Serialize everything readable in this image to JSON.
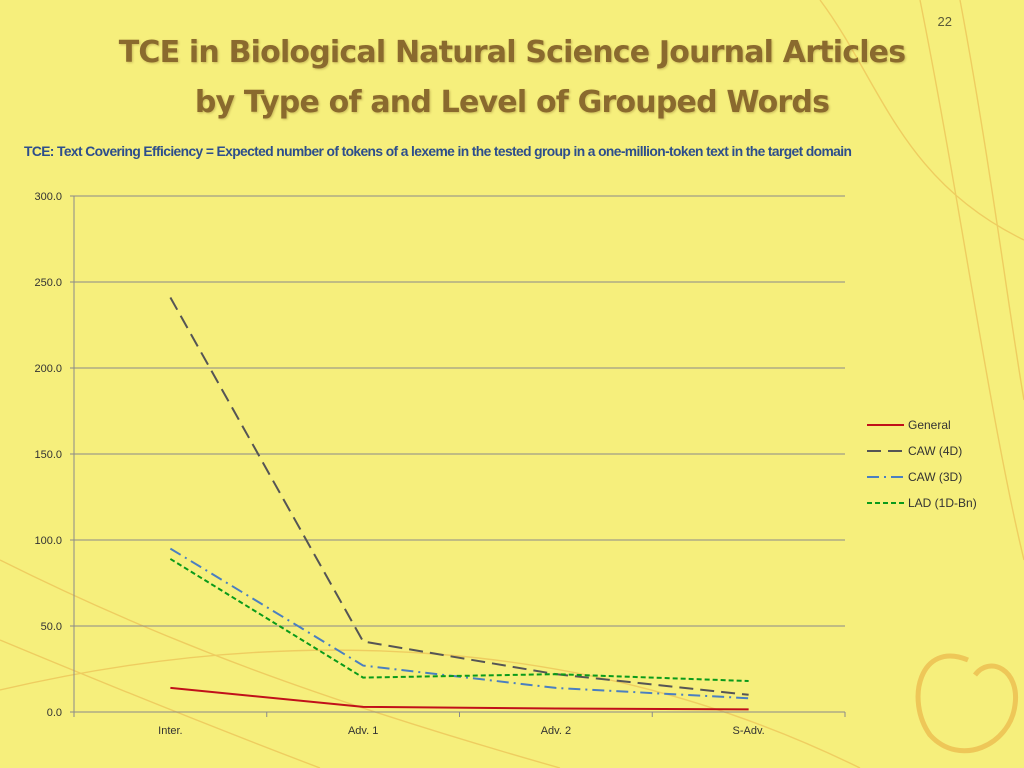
{
  "slide": {
    "number": "22",
    "title_line1": "TCE in Biological Natural Science Journal Articles",
    "title_line2": "by Type of and Level of Grouped Words",
    "subtitle": "TCE: Text Covering Efficiency = Expected number of tokens of a lexeme in the tested group in a one-million-token text in the target domain"
  },
  "colors": {
    "background": "#f6ef7c",
    "title": "#8a6a2e",
    "subtitle": "#2d4e8c",
    "grid": "#8a8a8a"
  },
  "chart_data": {
    "type": "line",
    "categories": [
      "Inter.",
      "Adv. 1",
      "Adv. 2",
      "S-Adv."
    ],
    "ylim": [
      0,
      300
    ],
    "yticks": [
      "0.0",
      "50.0",
      "100.0",
      "150.0",
      "200.0",
      "250.0",
      "300.0"
    ],
    "grid": true,
    "legend_position": "right",
    "title": "",
    "xlabel": "",
    "ylabel": "",
    "series": [
      {
        "name": "General",
        "values": [
          14,
          3,
          2,
          1.5
        ],
        "color": "#c0101a",
        "dash": "solid"
      },
      {
        "name": "CAW (4D)",
        "values": [
          241,
          41,
          22,
          10
        ],
        "color": "#555555",
        "dash": "long-dash"
      },
      {
        "name": "CAW (3D)",
        "values": [
          95,
          27,
          14,
          8
        ],
        "color": "#4a7fc1",
        "dash": "dash-dot"
      },
      {
        "name": "LAD (1D-Bn)",
        "values": [
          89,
          20,
          22,
          18
        ],
        "color": "#0a9a1a",
        "dash": "short-dash"
      }
    ]
  }
}
